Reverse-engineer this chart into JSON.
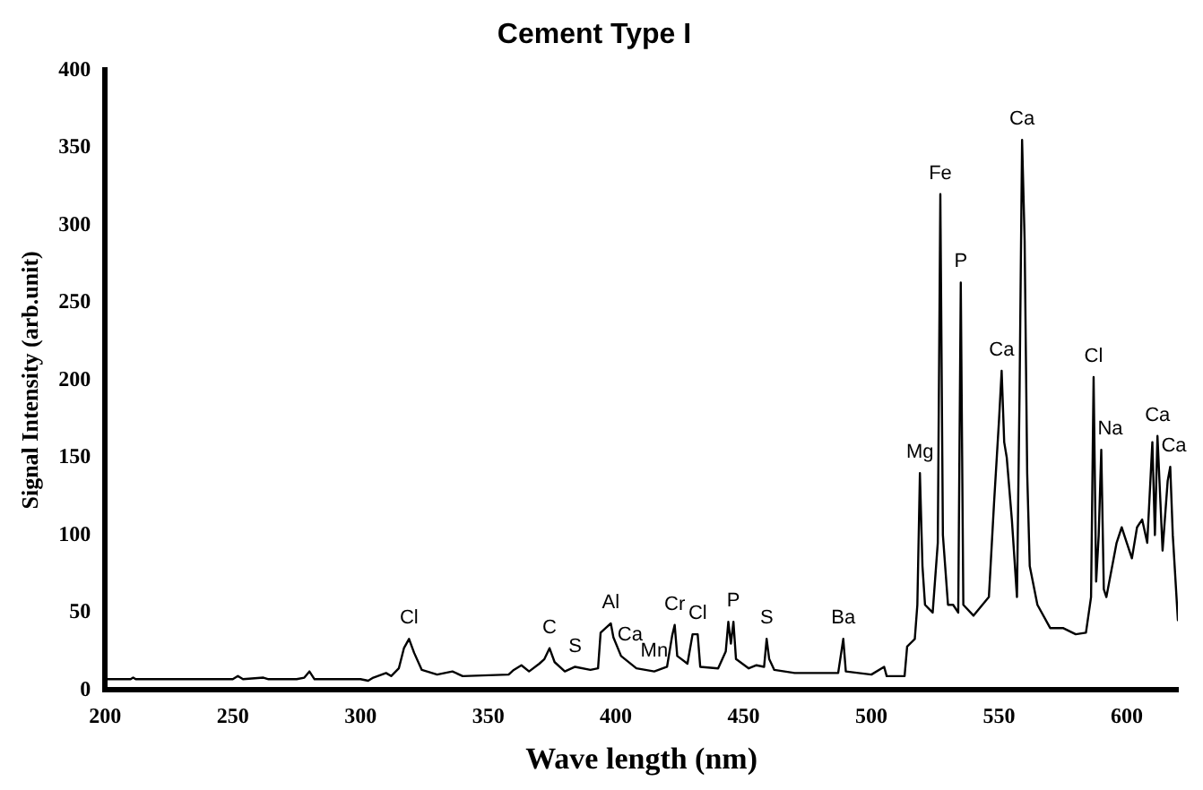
{
  "chart_data": {
    "type": "line",
    "title": "Cement Type I",
    "xlabel": "Wave length (nm)",
    "ylabel": "Signal Intensity (arb.unit)",
    "xlim": [
      200,
      620
    ],
    "xticks": [
      200,
      250,
      300,
      350,
      400,
      450,
      500,
      550,
      600
    ],
    "ylim": [
      0,
      400
    ],
    "yticks": [
      0,
      50,
      100,
      150,
      200,
      250,
      300,
      350,
      400
    ],
    "grid": false,
    "legend": false,
    "marker": "none",
    "line_style": "solid",
    "series": [
      {
        "color": "#000000",
        "x": [
          200,
          210,
          211,
          212,
          240,
          250,
          252,
          254,
          262,
          264,
          275,
          278,
          280,
          282,
          290,
          300,
          303,
          305,
          310,
          312,
          315,
          317,
          319,
          321,
          324,
          330,
          336,
          340,
          358,
          360,
          363,
          366,
          370,
          372,
          374,
          376,
          380,
          384,
          390,
          393,
          394,
          396,
          398,
          399,
          402,
          408,
          415,
          420,
          422,
          423,
          424,
          428,
          430,
          432,
          433,
          440,
          443,
          444,
          445,
          446,
          447,
          452,
          455,
          458,
          459,
          460,
          462,
          470,
          487,
          489,
          490,
          500,
          505,
          506,
          513,
          514,
          517,
          518,
          519,
          520,
          521,
          524,
          526,
          527,
          528,
          530,
          532,
          534,
          535,
          536,
          540,
          546,
          548,
          550,
          551,
          552,
          553,
          555,
          557,
          558,
          559,
          560,
          561,
          562,
          565,
          570,
          575,
          580,
          584,
          586,
          587,
          588,
          589,
          590,
          591,
          592,
          596,
          598,
          600,
          602,
          604,
          606,
          608,
          610,
          611,
          612,
          614,
          616,
          617,
          618,
          620
        ],
        "values": [
          7,
          7,
          8,
          7,
          7,
          7,
          9,
          7,
          8,
          7,
          7,
          8,
          12,
          7,
          7,
          7,
          6,
          8,
          11,
          9,
          14,
          27,
          33,
          24,
          13,
          10,
          12,
          9,
          10,
          13,
          16,
          12,
          17,
          20,
          27,
          18,
          12,
          15,
          13,
          14,
          37,
          40,
          43,
          34,
          22,
          14,
          12,
          15,
          35,
          42,
          22,
          17,
          36,
          36,
          15,
          14,
          25,
          44,
          30,
          44,
          20,
          14,
          16,
          15,
          33,
          20,
          13,
          11,
          11,
          33,
          12,
          10,
          15,
          9,
          9,
          28,
          33,
          55,
          140,
          80,
          55,
          50,
          95,
          320,
          100,
          55,
          55,
          50,
          263,
          55,
          48,
          60,
          120,
          175,
          206,
          160,
          150,
          110,
          60,
          190,
          355,
          290,
          140,
          80,
          55,
          40,
          40,
          36,
          37,
          60,
          202,
          70,
          100,
          155,
          65,
          60,
          95,
          105,
          95,
          85,
          105,
          110,
          95,
          160,
          100,
          164,
          90,
          135,
          144,
          100,
          45
        ]
      }
    ],
    "annotations": [
      {
        "text": "Cl",
        "x": 319,
        "y": 33
      },
      {
        "text": "C",
        "x": 374,
        "y": 27
      },
      {
        "text": "S",
        "x": 384,
        "y": 15
      },
      {
        "text": "Al",
        "x": 398,
        "y": 43
      },
      {
        "text": "Ca",
        "x": 402,
        "y": 22
      },
      {
        "text": "Mn",
        "x": 415,
        "y": 12
      },
      {
        "text": "Cr",
        "x": 423,
        "y": 42
      },
      {
        "text": "Cl",
        "x": 432,
        "y": 36
      },
      {
        "text": "P",
        "x": 446,
        "y": 44
      },
      {
        "text": "S",
        "x": 459,
        "y": 33
      },
      {
        "text": "Ba",
        "x": 489,
        "y": 33
      },
      {
        "text": "Mg",
        "x": 519,
        "y": 140
      },
      {
        "text": "Fe",
        "x": 527,
        "y": 320
      },
      {
        "text": "P",
        "x": 535,
        "y": 263
      },
      {
        "text": "Ca",
        "x": 551,
        "y": 206
      },
      {
        "text": "Ca",
        "x": 559,
        "y": 355
      },
      {
        "text": "Cl",
        "x": 587,
        "y": 202
      },
      {
        "text": "Na",
        "x": 590,
        "y": 155
      },
      {
        "text": "Ca",
        "x": 612,
        "y": 164
      },
      {
        "text": "Ca",
        "x": 617,
        "y": 144
      }
    ]
  }
}
